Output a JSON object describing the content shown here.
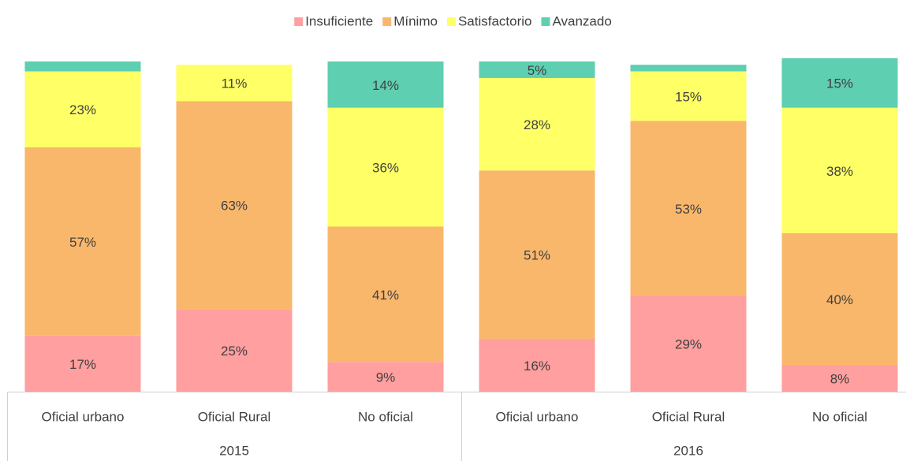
{
  "chart_data": {
    "type": "stacked_bar",
    "categories": [
      "Oficial urbano",
      "Oficial Rural",
      "No oficial",
      "Oficial urbano",
      "Oficial Rural",
      "No oficial"
    ],
    "groups": [
      "2015",
      "2016"
    ],
    "ylim": [
      0,
      100
    ],
    "legend": "top",
    "series": [
      {
        "name": "Insuficiente",
        "color": "#ff9f9f",
        "values": [
          17,
          25,
          9,
          16,
          29,
          8
        ],
        "value_labels": [
          "17%",
          "25%",
          "9%",
          "16%",
          "29%",
          "8%"
        ]
      },
      {
        "name": "Mínimo",
        "color": "#f9b76c",
        "values": [
          57,
          63,
          41,
          51,
          53,
          40
        ],
        "value_labels": [
          "57%",
          "63%",
          "41%",
          "51%",
          "53%",
          "40%"
        ]
      },
      {
        "name": "Satisfactorio",
        "color": "#ffff66",
        "values": [
          23,
          11,
          36,
          28,
          15,
          38
        ],
        "value_labels": [
          "23%",
          "11%",
          "36%",
          "28%",
          "15%",
          "38%"
        ]
      },
      {
        "name": "Avanzado",
        "color": "#5ecfb1",
        "values": [
          3,
          0,
          14,
          5,
          2,
          15
        ],
        "value_labels": [
          null,
          null,
          "14%",
          "5%",
          null,
          "15%"
        ]
      }
    ]
  }
}
